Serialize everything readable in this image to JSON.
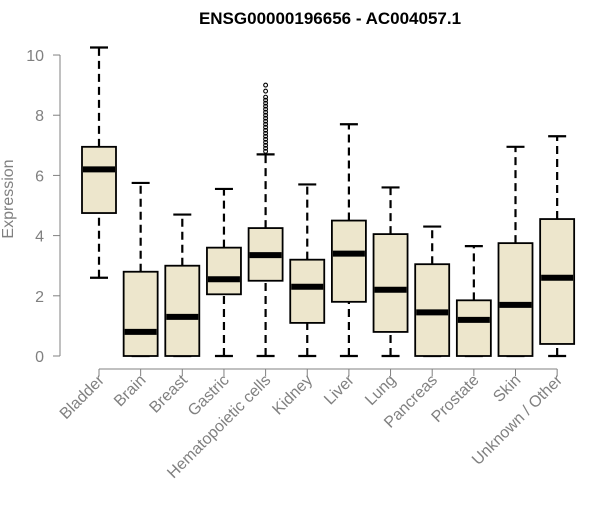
{
  "chart_data": {
    "type": "box",
    "title": "ENSG00000196656 - AC004057.1",
    "xlabel": "",
    "ylabel": "Expression",
    "ylim": [
      0,
      10.2
    ],
    "yticks": [
      0,
      2,
      4,
      6,
      8,
      10
    ],
    "grid": false,
    "legend": "none",
    "colors": {
      "box_fill": "#ede6cc",
      "box_stroke": "#000000",
      "median": "#000000",
      "axis": "#808080",
      "title": "#000000"
    },
    "categories": [
      "Bladder",
      "Brain",
      "Breast",
      "Gastric",
      "Hematopoietic cells",
      "Kidney",
      "Liver",
      "Lung",
      "Pancreas",
      "Prostate",
      "Skin",
      "Unknown / Other"
    ],
    "boxes": [
      {
        "category": "Bladder",
        "min": 2.6,
        "q1": 4.75,
        "median": 6.2,
        "q3": 6.95,
        "max": 10.25
      },
      {
        "category": "Brain",
        "min": 0.0,
        "q1": 0.0,
        "median": 0.8,
        "q3": 2.8,
        "max": 5.75
      },
      {
        "category": "Breast",
        "min": 0.0,
        "q1": 0.0,
        "median": 1.3,
        "q3": 3.0,
        "max": 4.7
      },
      {
        "category": "Gastric",
        "min": 0.0,
        "q1": 2.05,
        "median": 2.55,
        "q3": 3.6,
        "max": 5.55
      },
      {
        "category": "Hematopoietic cells",
        "min": 0.0,
        "q1": 2.5,
        "median": 3.35,
        "q3": 4.25,
        "max": 6.7,
        "outliers": [
          6.8,
          6.9,
          7.0,
          7.1,
          7.2,
          7.3,
          7.4,
          7.5,
          7.6,
          7.7,
          7.8,
          7.9,
          8.0,
          8.1,
          8.2,
          8.3,
          8.4,
          8.5,
          8.6,
          8.8,
          9.0
        ]
      },
      {
        "category": "Kidney",
        "min": 0.0,
        "q1": 1.1,
        "median": 2.3,
        "q3": 3.2,
        "max": 5.7
      },
      {
        "category": "Liver",
        "min": 0.0,
        "q1": 1.8,
        "median": 3.4,
        "q3": 4.5,
        "max": 7.7
      },
      {
        "category": "Lung",
        "min": 0.0,
        "q1": 0.8,
        "median": 2.2,
        "q3": 4.05,
        "max": 5.6
      },
      {
        "category": "Pancreas",
        "min": 0.0,
        "q1": 0.0,
        "median": 1.45,
        "q3": 3.05,
        "max": 4.3
      },
      {
        "category": "Prostate",
        "min": 0.0,
        "q1": 0.0,
        "median": 1.2,
        "q3": 1.85,
        "max": 3.65
      },
      {
        "category": "Skin",
        "min": 0.0,
        "q1": 0.0,
        "median": 1.7,
        "q3": 3.75,
        "max": 6.95
      },
      {
        "category": "Unknown / Other",
        "min": 0.0,
        "q1": 0.4,
        "median": 2.6,
        "q3": 4.55,
        "max": 7.3
      }
    ]
  }
}
